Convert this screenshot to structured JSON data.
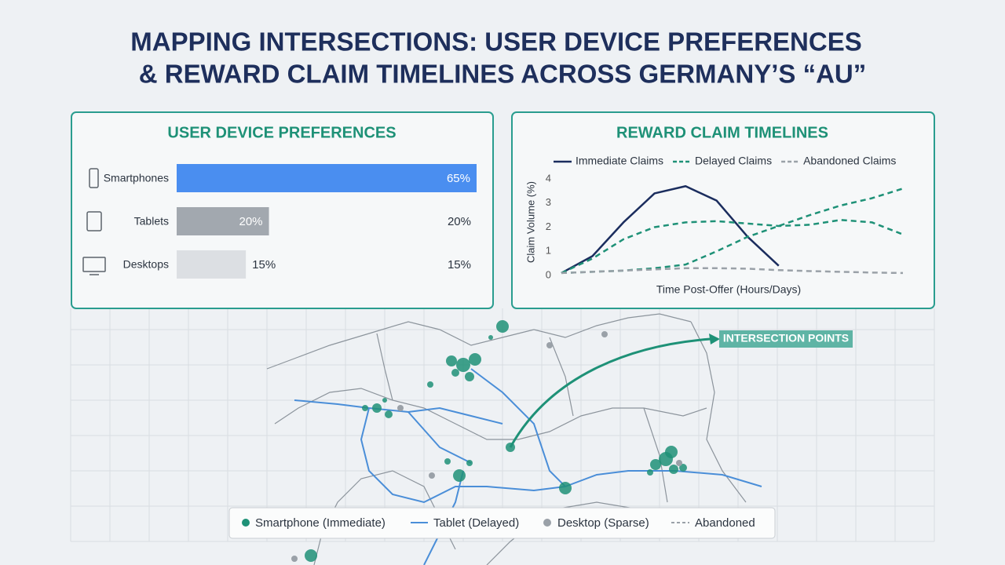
{
  "title_lines": [
    "MAPPING INTERSECTIONS: USER DEVICE PREFERENCES",
    "& REWARD CLAIM TIMELINES ACROSS GERMANY’S “AU”"
  ],
  "chart_data": [
    {
      "type": "bar",
      "title": "USER DEVICE PREFERENCES",
      "categories": [
        "Smartphones",
        "Tablets",
        "Desktops"
      ],
      "values": [
        65,
        20,
        15
      ],
      "value_labels": [
        "65%",
        "20%",
        "15%"
      ],
      "colors": [
        "#4a8ef0",
        "#a2a8af",
        "#dcdfe3"
      ]
    },
    {
      "type": "line",
      "title": "REWARD CLAIM TIMELINES",
      "x_label": "Time Post-Offer (Hours/Days)",
      "y_label": "Claim Volume (%)",
      "categories": [
        null,
        null,
        null,
        null,
        null,
        null,
        null,
        null,
        null,
        null,
        null,
        null
      ],
      "ylim": [
        0,
        4
      ],
      "yticks": [
        0,
        1,
        2,
        3,
        4
      ],
      "series": [
        {
          "name": "Immediate Claims",
          "color": "#1b2d5e",
          "line_style": "solid",
          "values": [
            0.1,
            0.8,
            2.2,
            3.4,
            3.7,
            3.1,
            1.6,
            0.4,
            null,
            null,
            null,
            null
          ]
        },
        {
          "name": "Delayed Claims",
          "color": "#1e9177",
          "line_style": "dashed",
          "values": [
            0.1,
            0.7,
            1.5,
            2.0,
            2.2,
            2.25,
            2.15,
            2.05,
            2.1,
            2.3,
            2.2,
            1.7
          ]
        },
        {
          "color": "#1e9177",
          "line_style": "dashed",
          "values": [
            0.1,
            0.15,
            0.2,
            0.3,
            0.45,
            1.0,
            1.6,
            2.05,
            2.5,
            2.9,
            3.2,
            3.6
          ]
        },
        {
          "name": "Abandoned Claims",
          "color": "#9aa1a8",
          "line_style": "dashed",
          "values": [
            0.1,
            0.15,
            0.2,
            0.25,
            0.3,
            0.3,
            0.28,
            0.22,
            0.18,
            0.15,
            0.12,
            0.1
          ]
        }
      ]
    }
  ],
  "map": {
    "annotation": "INTERSECTION POINTS",
    "legend": [
      "Smartphone (Immediate)",
      "Tablet (Delayed)",
      "Desktop (Sparse)",
      "Abandoned"
    ]
  }
}
